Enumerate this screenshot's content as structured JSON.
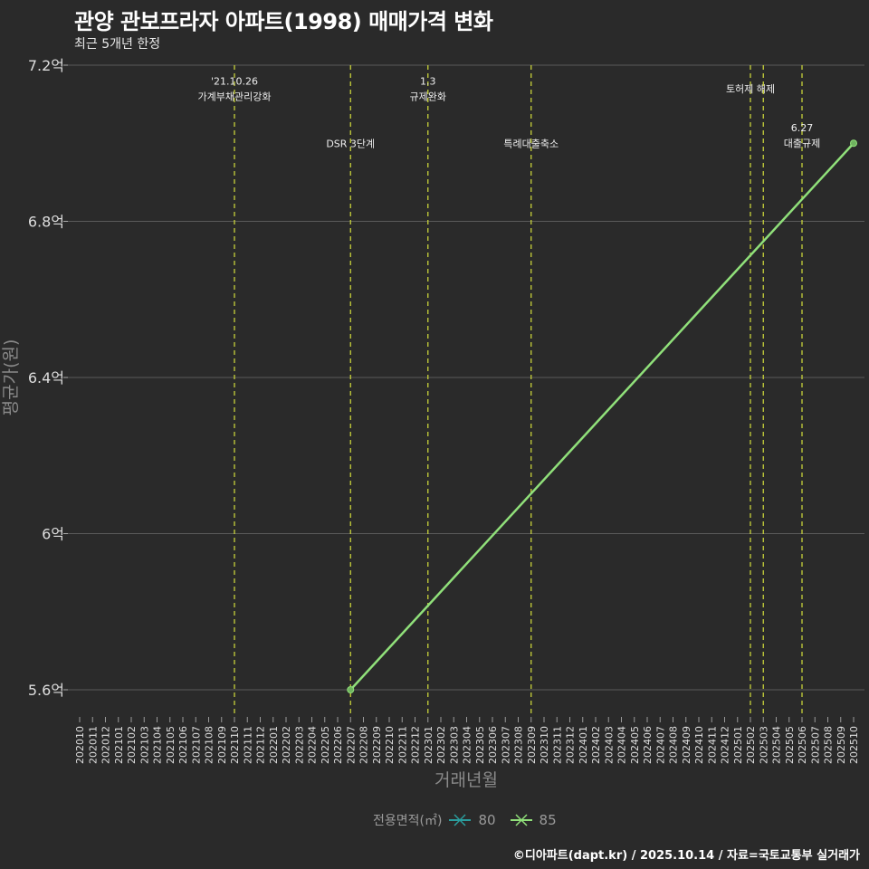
{
  "title": "관양 관보프라자 아파트(1998) 매매가격 변화",
  "subtitle": "최근 5개년 한정",
  "caption": "©디아파트(dapt.kr) / 2025.10.14 / 자료=국토교통부 실거래가",
  "colors": {
    "background": "#2a2a2a",
    "grid": "#5a5a5a",
    "series_80": "#2a9d9d",
    "series_85": "#90e07a",
    "event_line": "#c8d23a"
  },
  "chart_data": {
    "type": "line",
    "title": "관양 관보프라자 아파트(1998) 매매가격 변화",
    "xlabel": "거래년월",
    "ylabel": "평균가(원)",
    "x_categories": [
      "202010",
      "202011",
      "202012",
      "202101",
      "202102",
      "202103",
      "202104",
      "202105",
      "202106",
      "202107",
      "202108",
      "202109",
      "202110",
      "202111",
      "202112",
      "202201",
      "202202",
      "202203",
      "202204",
      "202205",
      "202206",
      "202207",
      "202208",
      "202209",
      "202210",
      "202211",
      "202212",
      "202301",
      "202302",
      "202303",
      "202304",
      "202305",
      "202306",
      "202307",
      "202308",
      "202309",
      "202310",
      "202311",
      "202312",
      "202401",
      "202402",
      "202403",
      "202404",
      "202405",
      "202406",
      "202407",
      "202408",
      "202409",
      "202410",
      "202411",
      "202412",
      "202501",
      "202502",
      "202503",
      "202504",
      "202505",
      "202506",
      "202507",
      "202508",
      "202509",
      "202510"
    ],
    "ylim": [
      5.6,
      7.2
    ],
    "y_ticks": [
      {
        "value": 5.6,
        "label": "5.6억"
      },
      {
        "value": 6.0,
        "label": "6억"
      },
      {
        "value": 6.4,
        "label": "6.4억"
      },
      {
        "value": 6.8,
        "label": "6.8억"
      },
      {
        "value": 7.2,
        "label": "7.2억"
      }
    ],
    "grid": true,
    "legend": {
      "title": "전용면적(㎡)",
      "position": "bottom",
      "entries": [
        "80",
        "85"
      ]
    },
    "series": [
      {
        "name": "80",
        "points": []
      },
      {
        "name": "85",
        "points": [
          {
            "x": "202207",
            "y": 5.6
          },
          {
            "x": "202510",
            "y": 7.0
          }
        ]
      }
    ],
    "events": [
      {
        "x": "202110",
        "lines": [
          "'21.10.26",
          "가계부채관리강화"
        ],
        "y": 7.14
      },
      {
        "x": "202207",
        "lines": [
          "DSR 3단계"
        ],
        "y": 7.0
      },
      {
        "x": "202301",
        "lines": [
          "1.3",
          "규제완화"
        ],
        "y": 7.14
      },
      {
        "x": "202309",
        "lines": [
          "특례대출축소"
        ],
        "y": 7.0
      },
      {
        "x": "202502",
        "lines": [
          "토허제 해제"
        ],
        "y": 7.14,
        "label_x": "202502"
      },
      {
        "x": "202503",
        "lines": []
      },
      {
        "x": "202506",
        "lines": [
          "6.27",
          "대출규제"
        ],
        "y": 7.02
      }
    ]
  }
}
